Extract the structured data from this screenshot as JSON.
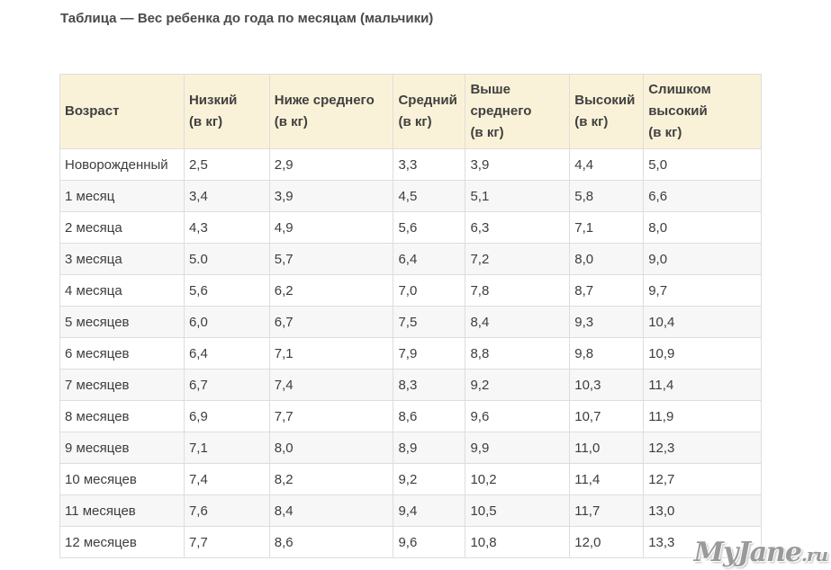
{
  "title": "Таблица — Вес ребенка до года по месяцам (мальчики)",
  "table": {
    "headers": [
      [
        "Возраст"
      ],
      [
        "Низкий",
        "(в кг)"
      ],
      [
        "Ниже среднего",
        "(в кг)"
      ],
      [
        "Средний",
        "(в кг)"
      ],
      [
        "Выше",
        "среднего",
        "(в кг)"
      ],
      [
        "Высокий",
        "(в кг)"
      ],
      [
        "Слишком",
        "высокий",
        "(в кг)"
      ]
    ],
    "rows": [
      [
        "Новорожденный",
        "2,5",
        "2,9",
        "3,3",
        "3,9",
        "4,4",
        "5,0"
      ],
      [
        "1 месяц",
        "3,4",
        "3,9",
        "4,5",
        "5,1",
        "5,8",
        "6,6"
      ],
      [
        "2 месяца",
        "4,3",
        "4,9",
        "5,6",
        "6,3",
        "7,1",
        "8,0"
      ],
      [
        "3 месяца",
        "5.0",
        "5,7",
        "6,4",
        "7,2",
        "8,0",
        "9,0"
      ],
      [
        "4 месяца",
        "5,6",
        "6,2",
        "7,0",
        "7,8",
        "8,7",
        "9,7"
      ],
      [
        "5 месяцев",
        "6,0",
        "6,7",
        "7,5",
        "8,4",
        "9,3",
        "10,4"
      ],
      [
        "6 месяцев",
        "6,4",
        "7,1",
        "7,9",
        "8,8",
        "9,8",
        "10,9"
      ],
      [
        "7 месяцев",
        "6,7",
        "7,4",
        "8,3",
        "9,2",
        "10,3",
        "11,4"
      ],
      [
        "8 месяцев",
        "6,9",
        "7,7",
        "8,6",
        "9,6",
        "10,7",
        "11,9"
      ],
      [
        "9 месяцев",
        "7,1",
        "8,0",
        "8,9",
        "9,9",
        "11,0",
        "12,3"
      ],
      [
        "10 месяцев",
        "7,4",
        "8,2",
        "9,2",
        "10,2",
        "11,4",
        "12,7"
      ],
      [
        "11 месяцев",
        "7,6",
        "8,4",
        "9,4",
        "10,5",
        "11,7",
        "13,0"
      ],
      [
        "12 месяцев",
        "7,7",
        "8,6",
        "9,6",
        "10,8",
        "12,0",
        "13,3"
      ]
    ]
  },
  "watermark": {
    "name": "MyJane",
    "suffix": ".ru"
  }
}
